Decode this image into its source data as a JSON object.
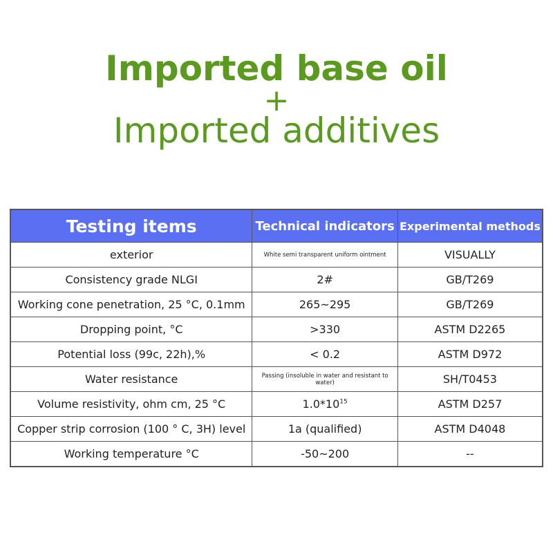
{
  "header": {
    "line1": "Imported base oil",
    "plus": "+",
    "line2": "Imported additives"
  },
  "table": {
    "columns": [
      "Testing items",
      "Technical indicators",
      "Experimental methods"
    ],
    "rows": [
      [
        "exterior",
        "White semi transparent uniform ointment",
        "VISUALLY"
      ],
      [
        "Consistency grade NLGI",
        "2#",
        "GB/T269"
      ],
      [
        "Working cone penetration, 25 °C, 0.1mm",
        "265~295",
        "GB/T269"
      ],
      [
        "Dropping point, °C",
        ">330",
        "ASTM D2265"
      ],
      [
        "Potential loss (99c, 22h),%",
        "< 0.2",
        "ASTM D972"
      ],
      [
        "Water resistance",
        "Passing (insoluble in water and resistant to water)",
        "SH/T0453"
      ],
      [
        "Volume resistivity, ohm cm, 25 °C",
        {
          "text": "1.0*10",
          "sup": "15"
        },
        "ASTM D257"
      ],
      [
        "Copper strip corrosion (100 ° C, 3H) level",
        "1a (qualified)",
        "ASTM D4048"
      ],
      [
        "Working temperature °C",
        "-50~200",
        "--"
      ]
    ]
  }
}
